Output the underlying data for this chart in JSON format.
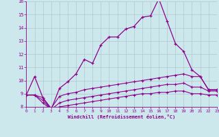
{
  "xlabel": "Windchill (Refroidissement éolien,°C)",
  "bg_color": "#cce8ed",
  "line_color": "#8b008b",
  "grid_color": "#b0c8d0",
  "x_values": [
    0,
    1,
    2,
    3,
    4,
    5,
    6,
    7,
    8,
    9,
    10,
    11,
    12,
    13,
    14,
    15,
    16,
    17,
    18,
    19,
    20,
    21,
    22,
    23
  ],
  "line1": [
    8.9,
    10.3,
    8.7,
    7.8,
    9.4,
    9.9,
    10.5,
    11.6,
    11.3,
    12.7,
    13.3,
    13.3,
    13.9,
    14.1,
    14.8,
    14.9,
    16.2,
    14.5,
    12.8,
    12.2,
    10.8,
    10.3,
    9.3,
    9.3
  ],
  "line2": [
    8.9,
    8.9,
    8.7,
    7.9,
    8.8,
    9.0,
    9.1,
    9.3,
    9.4,
    9.5,
    9.6,
    9.7,
    9.8,
    9.9,
    10.0,
    10.1,
    10.2,
    10.3,
    10.4,
    10.5,
    10.3,
    10.3,
    9.3,
    9.3
  ],
  "line3": [
    8.9,
    8.9,
    8.5,
    7.8,
    8.3,
    8.5,
    8.6,
    8.7,
    8.8,
    8.9,
    9.0,
    9.1,
    9.2,
    9.3,
    9.4,
    9.5,
    9.6,
    9.7,
    9.7,
    9.8,
    9.5,
    9.5,
    9.2,
    9.2
  ],
  "line4": [
    8.9,
    8.9,
    8.3,
    7.8,
    8.0,
    8.1,
    8.2,
    8.3,
    8.4,
    8.5,
    8.6,
    8.7,
    8.8,
    8.9,
    9.0,
    9.0,
    9.1,
    9.1,
    9.2,
    9.2,
    9.0,
    9.0,
    8.9,
    8.9
  ],
  "ylim": [
    8,
    16
  ],
  "xlim": [
    0,
    23
  ],
  "yticks": [
    8,
    9,
    10,
    11,
    12,
    13,
    14,
    15,
    16
  ],
  "xticks": [
    0,
    1,
    2,
    3,
    4,
    5,
    6,
    7,
    8,
    9,
    10,
    11,
    12,
    13,
    14,
    15,
    16,
    17,
    18,
    19,
    20,
    21,
    22,
    23
  ]
}
